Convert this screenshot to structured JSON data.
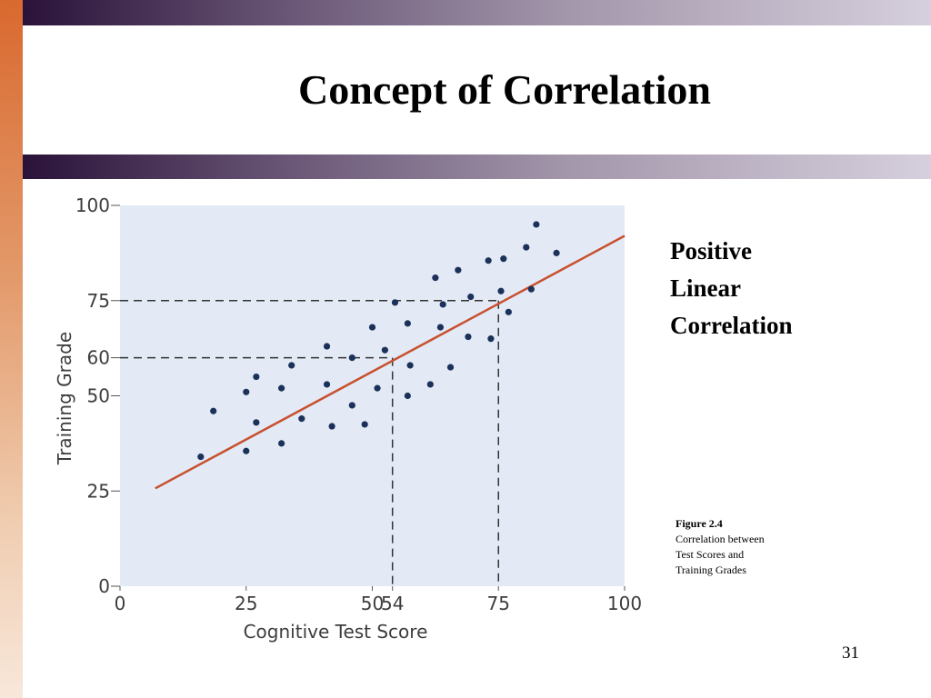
{
  "slide": {
    "title": "Concept of Correlation",
    "side_label": [
      "Positive",
      "Linear",
      "Correlation"
    ],
    "caption": {
      "figure": "Figure 2.4",
      "description": [
        "Correlation between",
        "Test Scores and",
        "Training Grades"
      ]
    },
    "page_number": "31"
  },
  "colors": {
    "plot_background": "#e3eaf6",
    "point": "#1c3159",
    "regression_line": "#c8502e",
    "guide_line": "#333333"
  },
  "chart_data": {
    "type": "scatter",
    "title": "",
    "xlabel": "Cognitive Test Score",
    "ylabel": "Training Grade",
    "xlim": [
      0,
      100
    ],
    "ylim": [
      0,
      100
    ],
    "x_ticks": [
      0,
      25,
      50,
      54,
      75,
      100
    ],
    "y_ticks": [
      0,
      25,
      50,
      60,
      75,
      100
    ],
    "grid": false,
    "points": [
      [
        16,
        34
      ],
      [
        18.5,
        46
      ],
      [
        25,
        35.5
      ],
      [
        25,
        51
      ],
      [
        27,
        43
      ],
      [
        27,
        55
      ],
      [
        32,
        37.5
      ],
      [
        32,
        52
      ],
      [
        34,
        58
      ],
      [
        36,
        44
      ],
      [
        41,
        53
      ],
      [
        41,
        63
      ],
      [
        42,
        42
      ],
      [
        46,
        60
      ],
      [
        46,
        47.5
      ],
      [
        48.5,
        42.5
      ],
      [
        50,
        68
      ],
      [
        51,
        52
      ],
      [
        52.5,
        62
      ],
      [
        54.5,
        74.5
      ],
      [
        57,
        50
      ],
      [
        57,
        69
      ],
      [
        57.5,
        58
      ],
      [
        61.5,
        53
      ],
      [
        62.5,
        81
      ],
      [
        63.5,
        68
      ],
      [
        64,
        74
      ],
      [
        65.5,
        57.5
      ],
      [
        67,
        83
      ],
      [
        69,
        65.5
      ],
      [
        69.5,
        76
      ],
      [
        73,
        85.5
      ],
      [
        73.5,
        65
      ],
      [
        75.5,
        77.5
      ],
      [
        76,
        86
      ],
      [
        77,
        72
      ],
      [
        80.5,
        89
      ],
      [
        81.5,
        78
      ],
      [
        82.5,
        95
      ],
      [
        86.5,
        87.5
      ]
    ],
    "regression_line": {
      "x": [
        7,
        100
      ],
      "y": [
        25.7,
        92
      ]
    },
    "guides": [
      {
        "x": 54,
        "y": 60
      },
      {
        "x": 75,
        "y": 75
      }
    ]
  }
}
